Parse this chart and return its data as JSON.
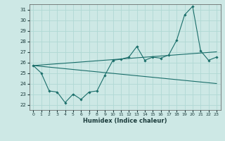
{
  "xlabel": "Humidex (Indice chaleur)",
  "background_color": "#cde8e5",
  "grid_color": "#b0d8d4",
  "line_color": "#1a6e6a",
  "xlim": [
    -0.5,
    23.5
  ],
  "ylim": [
    21.5,
    31.5
  ],
  "yticks": [
    22,
    23,
    24,
    25,
    26,
    27,
    28,
    29,
    30,
    31
  ],
  "xticks": [
    0,
    1,
    2,
    3,
    4,
    5,
    6,
    7,
    8,
    9,
    10,
    11,
    12,
    13,
    14,
    15,
    16,
    17,
    18,
    19,
    20,
    21,
    22,
    23
  ],
  "line1_x": [
    0,
    1,
    2,
    3,
    4,
    5,
    6,
    7,
    8,
    9,
    10,
    11,
    12,
    13,
    14,
    15,
    16,
    17,
    18,
    19,
    20,
    21,
    22,
    23
  ],
  "line1_y": [
    25.7,
    25.0,
    23.3,
    23.2,
    22.2,
    23.0,
    22.5,
    23.2,
    23.3,
    24.8,
    26.2,
    26.3,
    26.5,
    27.5,
    26.2,
    26.5,
    26.4,
    26.7,
    28.1,
    30.5,
    31.3,
    27.1,
    26.2,
    26.5
  ],
  "line2_x": [
    0,
    23
  ],
  "line2_y": [
    25.7,
    27.0
  ],
  "line3_x": [
    0,
    23
  ],
  "line3_y": [
    25.7,
    24.0
  ]
}
